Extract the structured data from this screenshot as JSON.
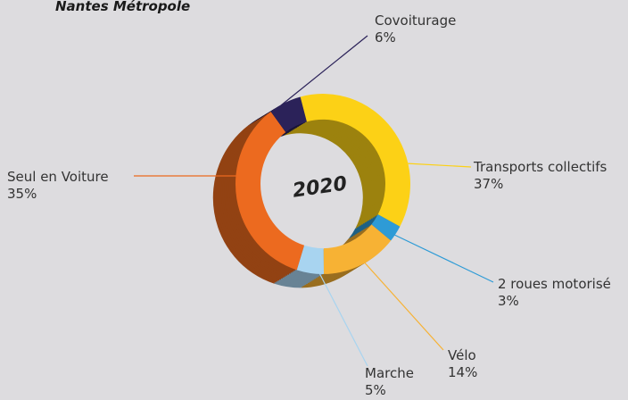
{
  "chart_data": {
    "type": "donut",
    "title": "Nantes Métropole",
    "center_label": "2020",
    "categories": [
      "Transports collectifs",
      "2 roues motorisé",
      "Vélo",
      "Marche",
      "Seul en Voiture",
      "Covoiturage"
    ],
    "values": [
      37,
      3,
      14,
      5,
      35,
      6
    ],
    "value_labels": [
      "37%",
      "3%",
      "14%",
      "5%",
      "35%",
      "6%"
    ],
    "colors": [
      "#fcd116",
      "#2e9bd6",
      "#f7b234",
      "#a8d4f0",
      "#ec6a1f",
      "#2b2259"
    ]
  }
}
